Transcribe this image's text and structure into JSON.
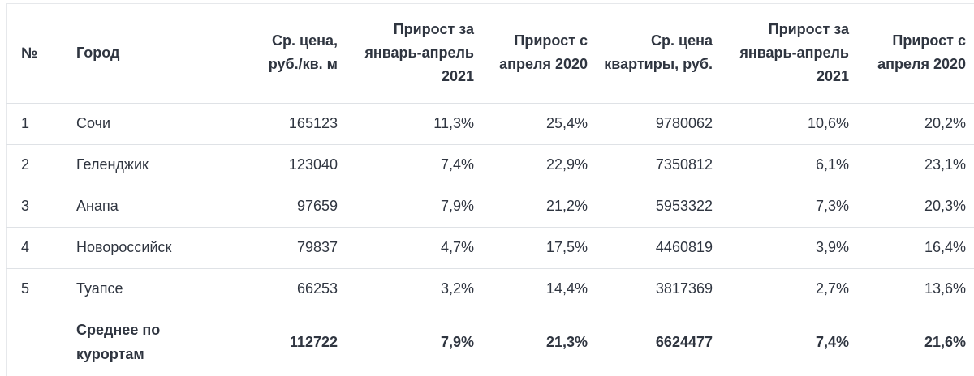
{
  "table": {
    "columns": [
      {
        "key": "num",
        "label": "№"
      },
      {
        "key": "city",
        "label": "Город"
      },
      {
        "key": "avg_price_sqm",
        "label": "Ср. цена, руб./кв. м"
      },
      {
        "key": "growth_jan_apr_2021_sqm",
        "label": "Прирост за январь-апрель 2021"
      },
      {
        "key": "growth_since_apr_2020_sqm",
        "label": "Прирост с апреля 2020"
      },
      {
        "key": "avg_price_flat",
        "label": "Ср. цена квартиры, руб."
      },
      {
        "key": "growth_jan_apr_2021_flat",
        "label": "Прирост за январь-апрель 2021"
      },
      {
        "key": "growth_since_apr_2020_flat",
        "label": "Прирост с апреля 2020"
      }
    ],
    "rows": [
      {
        "num": "1",
        "city": "Сочи",
        "avg_price_sqm": "165123",
        "growth_jan_apr_2021_sqm": "11,3%",
        "growth_since_apr_2020_sqm": "25,4%",
        "avg_price_flat": "9780062",
        "growth_jan_apr_2021_flat": "10,6%",
        "growth_since_apr_2020_flat": "20,2%"
      },
      {
        "num": "2",
        "city": "Геленджик",
        "avg_price_sqm": "123040",
        "growth_jan_apr_2021_sqm": "7,4%",
        "growth_since_apr_2020_sqm": "22,9%",
        "avg_price_flat": "7350812",
        "growth_jan_apr_2021_flat": "6,1%",
        "growth_since_apr_2020_flat": "23,1%"
      },
      {
        "num": "3",
        "city": "Анапа",
        "avg_price_sqm": "97659",
        "growth_jan_apr_2021_sqm": "7,9%",
        "growth_since_apr_2020_sqm": "21,2%",
        "avg_price_flat": "5953322",
        "growth_jan_apr_2021_flat": "7,3%",
        "growth_since_apr_2020_flat": "20,3%"
      },
      {
        "num": "4",
        "city": "Новороссийск",
        "avg_price_sqm": "79837",
        "growth_jan_apr_2021_sqm": "4,7%",
        "growth_since_apr_2020_sqm": "17,5%",
        "avg_price_flat": "4460819",
        "growth_jan_apr_2021_flat": "3,9%",
        "growth_since_apr_2020_flat": "16,4%"
      },
      {
        "num": "5",
        "city": "Туапсе",
        "avg_price_sqm": "66253",
        "growth_jan_apr_2021_sqm": "3,2%",
        "growth_since_apr_2020_sqm": "14,4%",
        "avg_price_flat": "3817369",
        "growth_jan_apr_2021_flat": "2,7%",
        "growth_since_apr_2020_flat": "13,6%"
      }
    ],
    "total": {
      "num": "",
      "city": "Среднее по курортам",
      "avg_price_sqm": "112722",
      "growth_jan_apr_2021_sqm": "7,9%",
      "growth_since_apr_2020_sqm": "21,3%",
      "avg_price_flat": "6624477",
      "growth_jan_apr_2021_flat": "7,4%",
      "growth_since_apr_2020_flat": "21,6%"
    }
  },
  "colors": {
    "text": "#2f3540",
    "divider": "#dfe2e6",
    "background": "#ffffff"
  }
}
